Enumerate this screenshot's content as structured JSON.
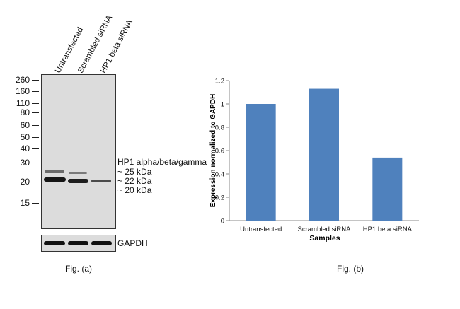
{
  "western_blot": {
    "lanes": [
      "Untransfected",
      "Scrambled siRNA",
      "HP1 beta siRNA"
    ],
    "mw_markers": [
      "260",
      "160",
      "110",
      "80",
      "60",
      "50",
      "40",
      "30",
      "20",
      "15"
    ],
    "target_label": "HP1 alpha/beta/gamma",
    "band_sizes": [
      "~ 25 kDa",
      "~ 22 kDa",
      "~ 20 kDa"
    ],
    "loading_control": "GAPDH",
    "caption": "Fig. (a)"
  },
  "chart_data": {
    "type": "bar",
    "categories": [
      "Untransfected",
      "Scrambled siRNA",
      "HP1 beta siRNA"
    ],
    "values": [
      1.0,
      1.13,
      0.54
    ],
    "xlabel": "Samples",
    "ylabel": "Expression  normalized to GAPDH",
    "ylim": [
      0,
      1.2
    ],
    "yticks": [
      "0",
      "0.2",
      "0.4",
      "0.6",
      "0.8",
      "1",
      "1.2"
    ],
    "grid": false,
    "bar_color": "#4f81bd",
    "caption": "Fig. (b)"
  }
}
